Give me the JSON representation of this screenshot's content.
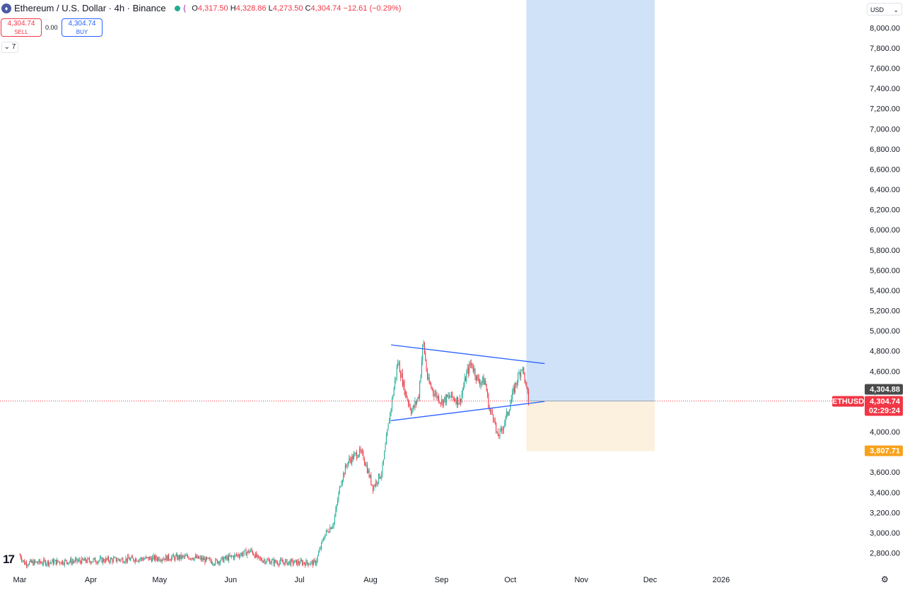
{
  "header": {
    "title": "Ethereum / U.S. Dollar · 4h · Binance",
    "symbol_icon": "ethereum-logo",
    "ohlc": {
      "o_key": "O",
      "o_val": "4,317.50",
      "h_key": "H",
      "h_val": "4,328.86",
      "l_key": "L",
      "l_val": "4,273.50",
      "c_key": "C",
      "c_val": "4,304.74",
      "change": "−12.61 (−0.29%)"
    }
  },
  "trade": {
    "sell_price": "4,304.74",
    "sell_label": "SELL",
    "spread": "0.00",
    "buy_price": "4,304.74",
    "buy_label": "BUY"
  },
  "indicators_toggle": "7",
  "currency": "USD",
  "colors": {
    "up": "#22ab94",
    "down": "#f23645",
    "trendline": "#2962ff",
    "target_zone": "#cfe2f8",
    "stop_zone": "#fbf1de",
    "price_label": "#f23645",
    "stop_label": "#f7a21b",
    "current_label": "#4a4a4a"
  },
  "chart_data": {
    "type": "candlestick",
    "symbol": "ETHUSD",
    "interval": "4h",
    "x_labels": [
      "Mar",
      "Apr",
      "May",
      "Jun",
      "Jul",
      "Aug",
      "Sep",
      "Oct",
      "Nov",
      "Dec",
      "2026"
    ],
    "y_ticks": [
      "2,800.00",
      "3,000.00",
      "3,200.00",
      "3,400.00",
      "3,600.00",
      "4,000.00",
      "4,200.00",
      "4,400.00",
      "4,600.00",
      "4,800.00",
      "5,000.00",
      "5,200.00",
      "5,400.00",
      "5,600.00",
      "5,800.00",
      "6,000.00",
      "6,200.00",
      "6,400.00",
      "6,600.00",
      "6,800.00",
      "7,000.00",
      "7,200.00",
      "7,400.00",
      "7,600.00",
      "7,800.00",
      "8,000.00"
    ],
    "ylim": [
      2700,
      8150
    ],
    "price_path": [
      {
        "t": "2025-03-01",
        "p": 2780
      },
      {
        "t": "2025-03-03",
        "p": 2700
      },
      {
        "t": "2025-05-15",
        "p": 2760
      },
      {
        "t": "2025-05-25",
        "p": 2710
      },
      {
        "t": "2025-06-10",
        "p": 2820
      },
      {
        "t": "2025-06-13",
        "p": 2740
      },
      {
        "t": "2025-06-20",
        "p": 2710
      },
      {
        "t": "2025-07-08",
        "p": 2700
      },
      {
        "t": "2025-07-12",
        "p": 2980
      },
      {
        "t": "2025-07-16",
        "p": 3100
      },
      {
        "t": "2025-07-19",
        "p": 3500
      },
      {
        "t": "2025-07-22",
        "p": 3700
      },
      {
        "t": "2025-07-27",
        "p": 3800
      },
      {
        "t": "2025-07-29",
        "p": 3750
      },
      {
        "t": "2025-08-02",
        "p": 3450
      },
      {
        "t": "2025-08-06",
        "p": 3600
      },
      {
        "t": "2025-08-09",
        "p": 4100
      },
      {
        "t": "2025-08-13",
        "p": 4700
      },
      {
        "t": "2025-08-16",
        "p": 4400
      },
      {
        "t": "2025-08-19",
        "p": 4200
      },
      {
        "t": "2025-08-22",
        "p": 4350
      },
      {
        "t": "2025-08-24",
        "p": 4900
      },
      {
        "t": "2025-08-26",
        "p": 4500
      },
      {
        "t": "2025-08-29",
        "p": 4380
      },
      {
        "t": "2025-09-01",
        "p": 4300
      },
      {
        "t": "2025-09-05",
        "p": 4350
      },
      {
        "t": "2025-09-09",
        "p": 4300
      },
      {
        "t": "2025-09-12",
        "p": 4580
      },
      {
        "t": "2025-09-14",
        "p": 4680
      },
      {
        "t": "2025-09-17",
        "p": 4500
      },
      {
        "t": "2025-09-20",
        "p": 4500
      },
      {
        "t": "2025-09-22",
        "p": 4200
      },
      {
        "t": "2025-09-24",
        "p": 4150
      },
      {
        "t": "2025-09-25",
        "p": 3950
      },
      {
        "t": "2025-09-27",
        "p": 4000
      },
      {
        "t": "2025-09-30",
        "p": 4200
      },
      {
        "t": "2025-10-03",
        "p": 4450
      },
      {
        "t": "2025-10-06",
        "p": 4650
      },
      {
        "t": "2025-10-07",
        "p": 4560
      },
      {
        "t": "2025-10-08",
        "p": 4420
      },
      {
        "t": "2025-10-09",
        "p": 4304.74
      }
    ],
    "trendlines": [
      {
        "from": {
          "t": "2025-08-10",
          "p": 4860
        },
        "to": {
          "t": "2025-10-16",
          "p": 4675
        }
      },
      {
        "from": {
          "t": "2025-08-10",
          "p": 4110
        },
        "to": {
          "t": "2025-10-16",
          "p": 4300
        }
      }
    ],
    "position": {
      "type": "long",
      "start": "2025-10-08",
      "end": "2025-12-03",
      "entry": 4304.88,
      "target": 8150,
      "stop": 3807.71
    },
    "price_labels": {
      "entry_value": "4,304.88",
      "symbol_tag": "ETHUSD",
      "last_value": "4,304.74",
      "countdown": "02:29:24",
      "stop_value": "3,807.71"
    }
  }
}
